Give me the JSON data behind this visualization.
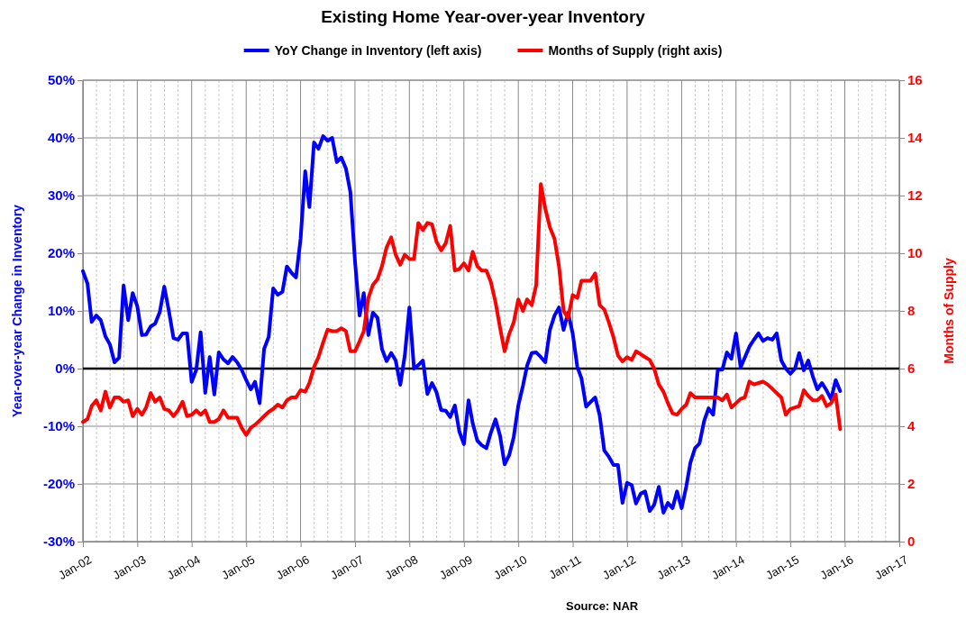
{
  "chart_data": {
    "type": "line",
    "title": "Existing Home Year-over-year Inventory",
    "ylabel": "Year-over-year Change in Inventory",
    "y2label": "Months of Supply",
    "annotations": [
      "Source: NAR"
    ],
    "x": [
      "2002-01",
      "2002-02",
      "2002-03",
      "2002-04",
      "2002-05",
      "2002-06",
      "2002-07",
      "2002-08",
      "2002-09",
      "2002-10",
      "2002-11",
      "2002-12",
      "2003-01",
      "2003-02",
      "2003-03",
      "2003-04",
      "2003-05",
      "2003-06",
      "2003-07",
      "2003-08",
      "2003-09",
      "2003-10",
      "2003-11",
      "2003-12",
      "2004-01",
      "2004-02",
      "2004-03",
      "2004-04",
      "2004-05",
      "2004-06",
      "2004-07",
      "2004-08",
      "2004-09",
      "2004-10",
      "2004-11",
      "2004-12",
      "2005-01",
      "2005-02",
      "2005-03",
      "2005-04",
      "2005-05",
      "2005-06",
      "2005-07",
      "2005-08",
      "2005-09",
      "2005-10",
      "2005-11",
      "2005-12",
      "2006-01",
      "2006-02",
      "2006-03",
      "2006-04",
      "2006-05",
      "2006-06",
      "2006-07",
      "2006-08",
      "2006-09",
      "2006-10",
      "2006-11",
      "2006-12",
      "2007-01",
      "2007-02",
      "2007-03",
      "2007-04",
      "2007-05",
      "2007-06",
      "2007-07",
      "2007-08",
      "2007-09",
      "2007-10",
      "2007-11",
      "2007-12",
      "2008-01",
      "2008-02",
      "2008-03",
      "2008-04",
      "2008-05",
      "2008-06",
      "2008-07",
      "2008-08",
      "2008-09",
      "2008-10",
      "2008-11",
      "2008-12",
      "2009-01",
      "2009-02",
      "2009-03",
      "2009-04",
      "2009-05",
      "2009-06",
      "2009-07",
      "2009-08",
      "2009-09",
      "2009-10",
      "2009-11",
      "2009-12",
      "2010-01",
      "2010-02",
      "2010-03",
      "2010-04",
      "2010-05",
      "2010-06",
      "2010-07",
      "2010-08",
      "2010-09",
      "2010-10",
      "2010-11",
      "2010-12",
      "2011-01",
      "2011-02",
      "2011-03",
      "2011-04",
      "2011-05",
      "2011-06",
      "2011-07",
      "2011-08",
      "2011-09",
      "2011-10",
      "2011-11",
      "2011-12",
      "2012-01",
      "2012-02",
      "2012-03",
      "2012-04",
      "2012-05",
      "2012-06",
      "2012-07",
      "2012-08",
      "2012-09",
      "2012-10",
      "2012-11",
      "2012-12",
      "2013-01",
      "2013-02",
      "2013-03",
      "2013-04",
      "2013-05",
      "2013-06",
      "2013-07",
      "2013-08",
      "2013-09",
      "2013-10",
      "2013-11",
      "2013-12",
      "2014-01",
      "2014-02",
      "2014-03",
      "2014-04",
      "2014-05",
      "2014-06",
      "2014-07",
      "2014-08",
      "2014-09",
      "2014-10",
      "2014-11",
      "2014-12",
      "2015-01",
      "2015-02",
      "2015-03",
      "2015-04",
      "2015-05",
      "2015-06",
      "2015-07",
      "2015-08",
      "2015-09",
      "2015-10",
      "2015-11",
      "2015-12"
    ],
    "series": [
      {
        "name": "YoY Change in Inventory (left axis)",
        "color": "#0000ff",
        "values": [
          16.9,
          14.7,
          8.1,
          9.2,
          8.4,
          5.6,
          4.2,
          1.1,
          1.9,
          14.4,
          8.4,
          13.1,
          10.8,
          5.8,
          5.9,
          7.3,
          7.8,
          9.8,
          14.2,
          10,
          5.3,
          5,
          6.1,
          6.1,
          -2.3,
          -0.2,
          6.3,
          -4.2,
          2,
          -4.5,
          2.8,
          1.6,
          0.9,
          2,
          1.1,
          -0.2,
          -2,
          -3.6,
          -2.3,
          -6,
          3.4,
          5.5,
          13.9,
          12.8,
          13.3,
          17.7,
          16.6,
          15.8,
          22.5,
          34.2,
          28,
          39.2,
          38.1,
          40.3,
          39.5,
          40,
          35.8,
          36.6,
          34.7,
          30.6,
          18.6,
          9.2,
          13.1,
          5.8,
          9.7,
          8.8,
          3.4,
          1.3,
          2.7,
          1.4,
          -2.8,
          2.2,
          10.6,
          0,
          0.6,
          1.4,
          -4.4,
          -2.5,
          -4.1,
          -7.2,
          -7.3,
          -8.4,
          -6.4,
          -10.9,
          -13.1,
          -5.5,
          -9.5,
          -12.5,
          -13.3,
          -13.8,
          -11.1,
          -8.8,
          -11.7,
          -16.6,
          -15,
          -11.9,
          -6.4,
          -3,
          0.5,
          2.7,
          2.8,
          2,
          1.1,
          6.7,
          9.2,
          10.6,
          6.7,
          9.7,
          6.1,
          0.3,
          -1.7,
          -6.6,
          -5.8,
          -5,
          -8.1,
          -14.2,
          -15.3,
          -16.7,
          -16.7,
          -23.3,
          -19.8,
          -20.2,
          -23.4,
          -21.7,
          -21.3,
          -24.7,
          -23.6,
          -20.5,
          -25,
          -23.3,
          -24.2,
          -21.3,
          -24.2,
          -20.5,
          -16.3,
          -13.8,
          -13,
          -9.1,
          -6.9,
          -8,
          -0.2,
          -0.2,
          2.8,
          1.7,
          6.1,
          0.2,
          1.9,
          3.8,
          5,
          6.1,
          4.8,
          5.3,
          5,
          6.1,
          1.4,
          0,
          -0.9,
          0,
          2.7,
          -0.3,
          1.4,
          -1.4,
          -3.6,
          -2.5,
          -3.8,
          -5.3,
          -2,
          -3.9
        ]
      },
      {
        "name": "Months of Supply (right axis)",
        "color": "#ff0000",
        "axis": "y2",
        "values": [
          4.15,
          4.25,
          4.7,
          4.9,
          4.55,
          5.2,
          4.65,
          5.0,
          5.0,
          4.85,
          4.9,
          4.35,
          4.6,
          4.4,
          4.65,
          5.15,
          4.85,
          5.0,
          4.6,
          4.55,
          4.35,
          4.55,
          4.85,
          4.35,
          4.4,
          4.55,
          4.4,
          4.55,
          4.15,
          4.15,
          4.25,
          4.55,
          4.3,
          4.3,
          4.3,
          3.95,
          3.7,
          3.95,
          4.05,
          4.2,
          4.35,
          4.5,
          4.6,
          4.75,
          4.65,
          4.9,
          5.0,
          5.0,
          5.25,
          5.2,
          5.5,
          6.05,
          6.4,
          6.9,
          7.35,
          7.3,
          7.3,
          7.4,
          7.3,
          6.6,
          6.6,
          6.95,
          7.3,
          8.45,
          8.9,
          9.1,
          9.55,
          10.2,
          10.55,
          9.95,
          9.6,
          9.95,
          9.8,
          9.8,
          11.05,
          10.8,
          11.05,
          11.0,
          10.4,
          10.1,
          10.35,
          10.95,
          9.4,
          9.45,
          9.65,
          9.4,
          10.05,
          9.55,
          9.4,
          9.4,
          9.0,
          8.3,
          7.4,
          6.6,
          7.2,
          7.6,
          8.4,
          8.0,
          8.4,
          8.2,
          8.9,
          12.4,
          11.55,
          10.9,
          10.5,
          9.55,
          8.0,
          7.75,
          8.55,
          8.45,
          9.05,
          9.05,
          9.05,
          9.3,
          8.2,
          8.05,
          7.6,
          7.1,
          6.45,
          6.25,
          6.4,
          6.3,
          6.6,
          6.5,
          6.4,
          6.3,
          6.0,
          5.45,
          5.2,
          4.8,
          4.45,
          4.4,
          4.6,
          4.75,
          5.15,
          5.0,
          5.0,
          5.0,
          5.0,
          5.0,
          5.0,
          4.9,
          5.1,
          4.65,
          4.8,
          4.95,
          5.0,
          5.55,
          5.45,
          5.5,
          5.55,
          5.45,
          5.3,
          5.15,
          5.0,
          4.4,
          4.6,
          4.65,
          4.7,
          5.25,
          5.05,
          4.9,
          4.9,
          5.05,
          4.7,
          4.8,
          5.1,
          3.9
        ]
      }
    ],
    "xlim": [
      "2002-01",
      "2017-01"
    ],
    "xticks": [
      {
        "value": "2002-01",
        "label": "Jan-02"
      },
      {
        "value": "2003-01",
        "label": "Jan-03"
      },
      {
        "value": "2004-01",
        "label": "Jan-04"
      },
      {
        "value": "2005-01",
        "label": "Jan-05"
      },
      {
        "value": "2006-01",
        "label": "Jan-06"
      },
      {
        "value": "2007-01",
        "label": "Jan-07"
      },
      {
        "value": "2008-01",
        "label": "Jan-08"
      },
      {
        "value": "2009-01",
        "label": "Jan-09"
      },
      {
        "value": "2010-01",
        "label": "Jan-10"
      },
      {
        "value": "2011-01",
        "label": "Jan-11"
      },
      {
        "value": "2012-01",
        "label": "Jan-12"
      },
      {
        "value": "2013-01",
        "label": "Jan-13"
      },
      {
        "value": "2014-01",
        "label": "Jan-14"
      },
      {
        "value": "2015-01",
        "label": "Jan-15"
      },
      {
        "value": "2016-01",
        "label": "Jan-16"
      },
      {
        "value": "2017-01",
        "label": "Jan-17"
      }
    ],
    "ylim": [
      -30,
      50
    ],
    "yticks": [
      {
        "value": -30,
        "label": "-30%"
      },
      {
        "value": -20,
        "label": "-20%"
      },
      {
        "value": -10,
        "label": "-10%"
      },
      {
        "value": 0,
        "label": "0%"
      },
      {
        "value": 10,
        "label": "10%"
      },
      {
        "value": 20,
        "label": "20%"
      },
      {
        "value": 30,
        "label": "30%"
      },
      {
        "value": 40,
        "label": "40%"
      },
      {
        "value": 50,
        "label": "50%"
      }
    ],
    "y2lim": [
      0,
      16
    ],
    "y2ticks": [
      0,
      2,
      4,
      6,
      8,
      10,
      12,
      14,
      16
    ],
    "ref_lines": [
      {
        "axis": "y",
        "value": 0,
        "color": "#000000"
      }
    ],
    "grid": true,
    "legend": "top",
    "line_style": "solid"
  }
}
